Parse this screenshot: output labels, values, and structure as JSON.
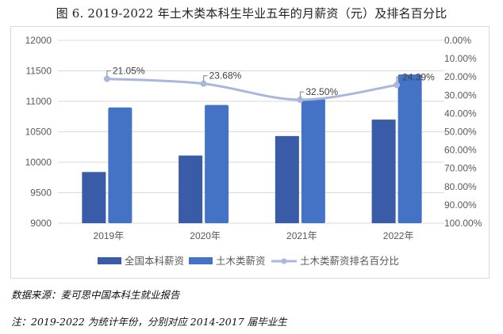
{
  "title": "图 6. 2019-2022 年土木类本科生毕业五年的月薪资（元）及排名百分比",
  "notes": {
    "source": "数据来源：麦可思中国本科生就业报告",
    "remark": "注：2019-2022 为统计年份，分别对应 2014-2017 届毕业生"
  },
  "colors": {
    "national": "#3A5BA8",
    "civil": "#4472C4",
    "rank_line": "#A9B7DC",
    "grid": "#D9D9D9",
    "axis_text": "#595959"
  },
  "chart_data": {
    "type": "bar+line",
    "title": "图 6. 2019-2022 年土木类本科生毕业五年的月薪资（元）及排名百分比",
    "categories": [
      "2019年",
      "2020年",
      "2021年",
      "2022年"
    ],
    "series": [
      {
        "name": "全国本科薪资",
        "type": "bar",
        "axis": "left",
        "values": [
          9840,
          10110,
          10430,
          10700
        ]
      },
      {
        "name": "土木类薪资",
        "type": "bar",
        "axis": "left",
        "values": [
          10900,
          10940,
          11040,
          11440
        ]
      },
      {
        "name": "土木类薪资排名百分比",
        "type": "line",
        "axis": "right",
        "values": [
          21.05,
          23.68,
          32.5,
          24.39
        ],
        "labels": [
          "21.05%",
          "23.68%",
          "32.50%",
          "24.39%"
        ]
      }
    ],
    "y_left": {
      "min": 9000,
      "max": 12000,
      "step": 500,
      "ticks": [
        "12000",
        "11500",
        "11000",
        "10500",
        "10000",
        "9500",
        "9000"
      ]
    },
    "y_right": {
      "min": 0,
      "max": 100,
      "reversed": true,
      "ticks": [
        "0.00%",
        "10.00%",
        "20.00%",
        "30.00%",
        "40.00%",
        "50.00%",
        "60.00%",
        "70.00%",
        "80.00%",
        "90.00%",
        "100.00%"
      ]
    },
    "grid": true,
    "legend_position": "bottom",
    "xlabel": "",
    "ylabel": ""
  }
}
